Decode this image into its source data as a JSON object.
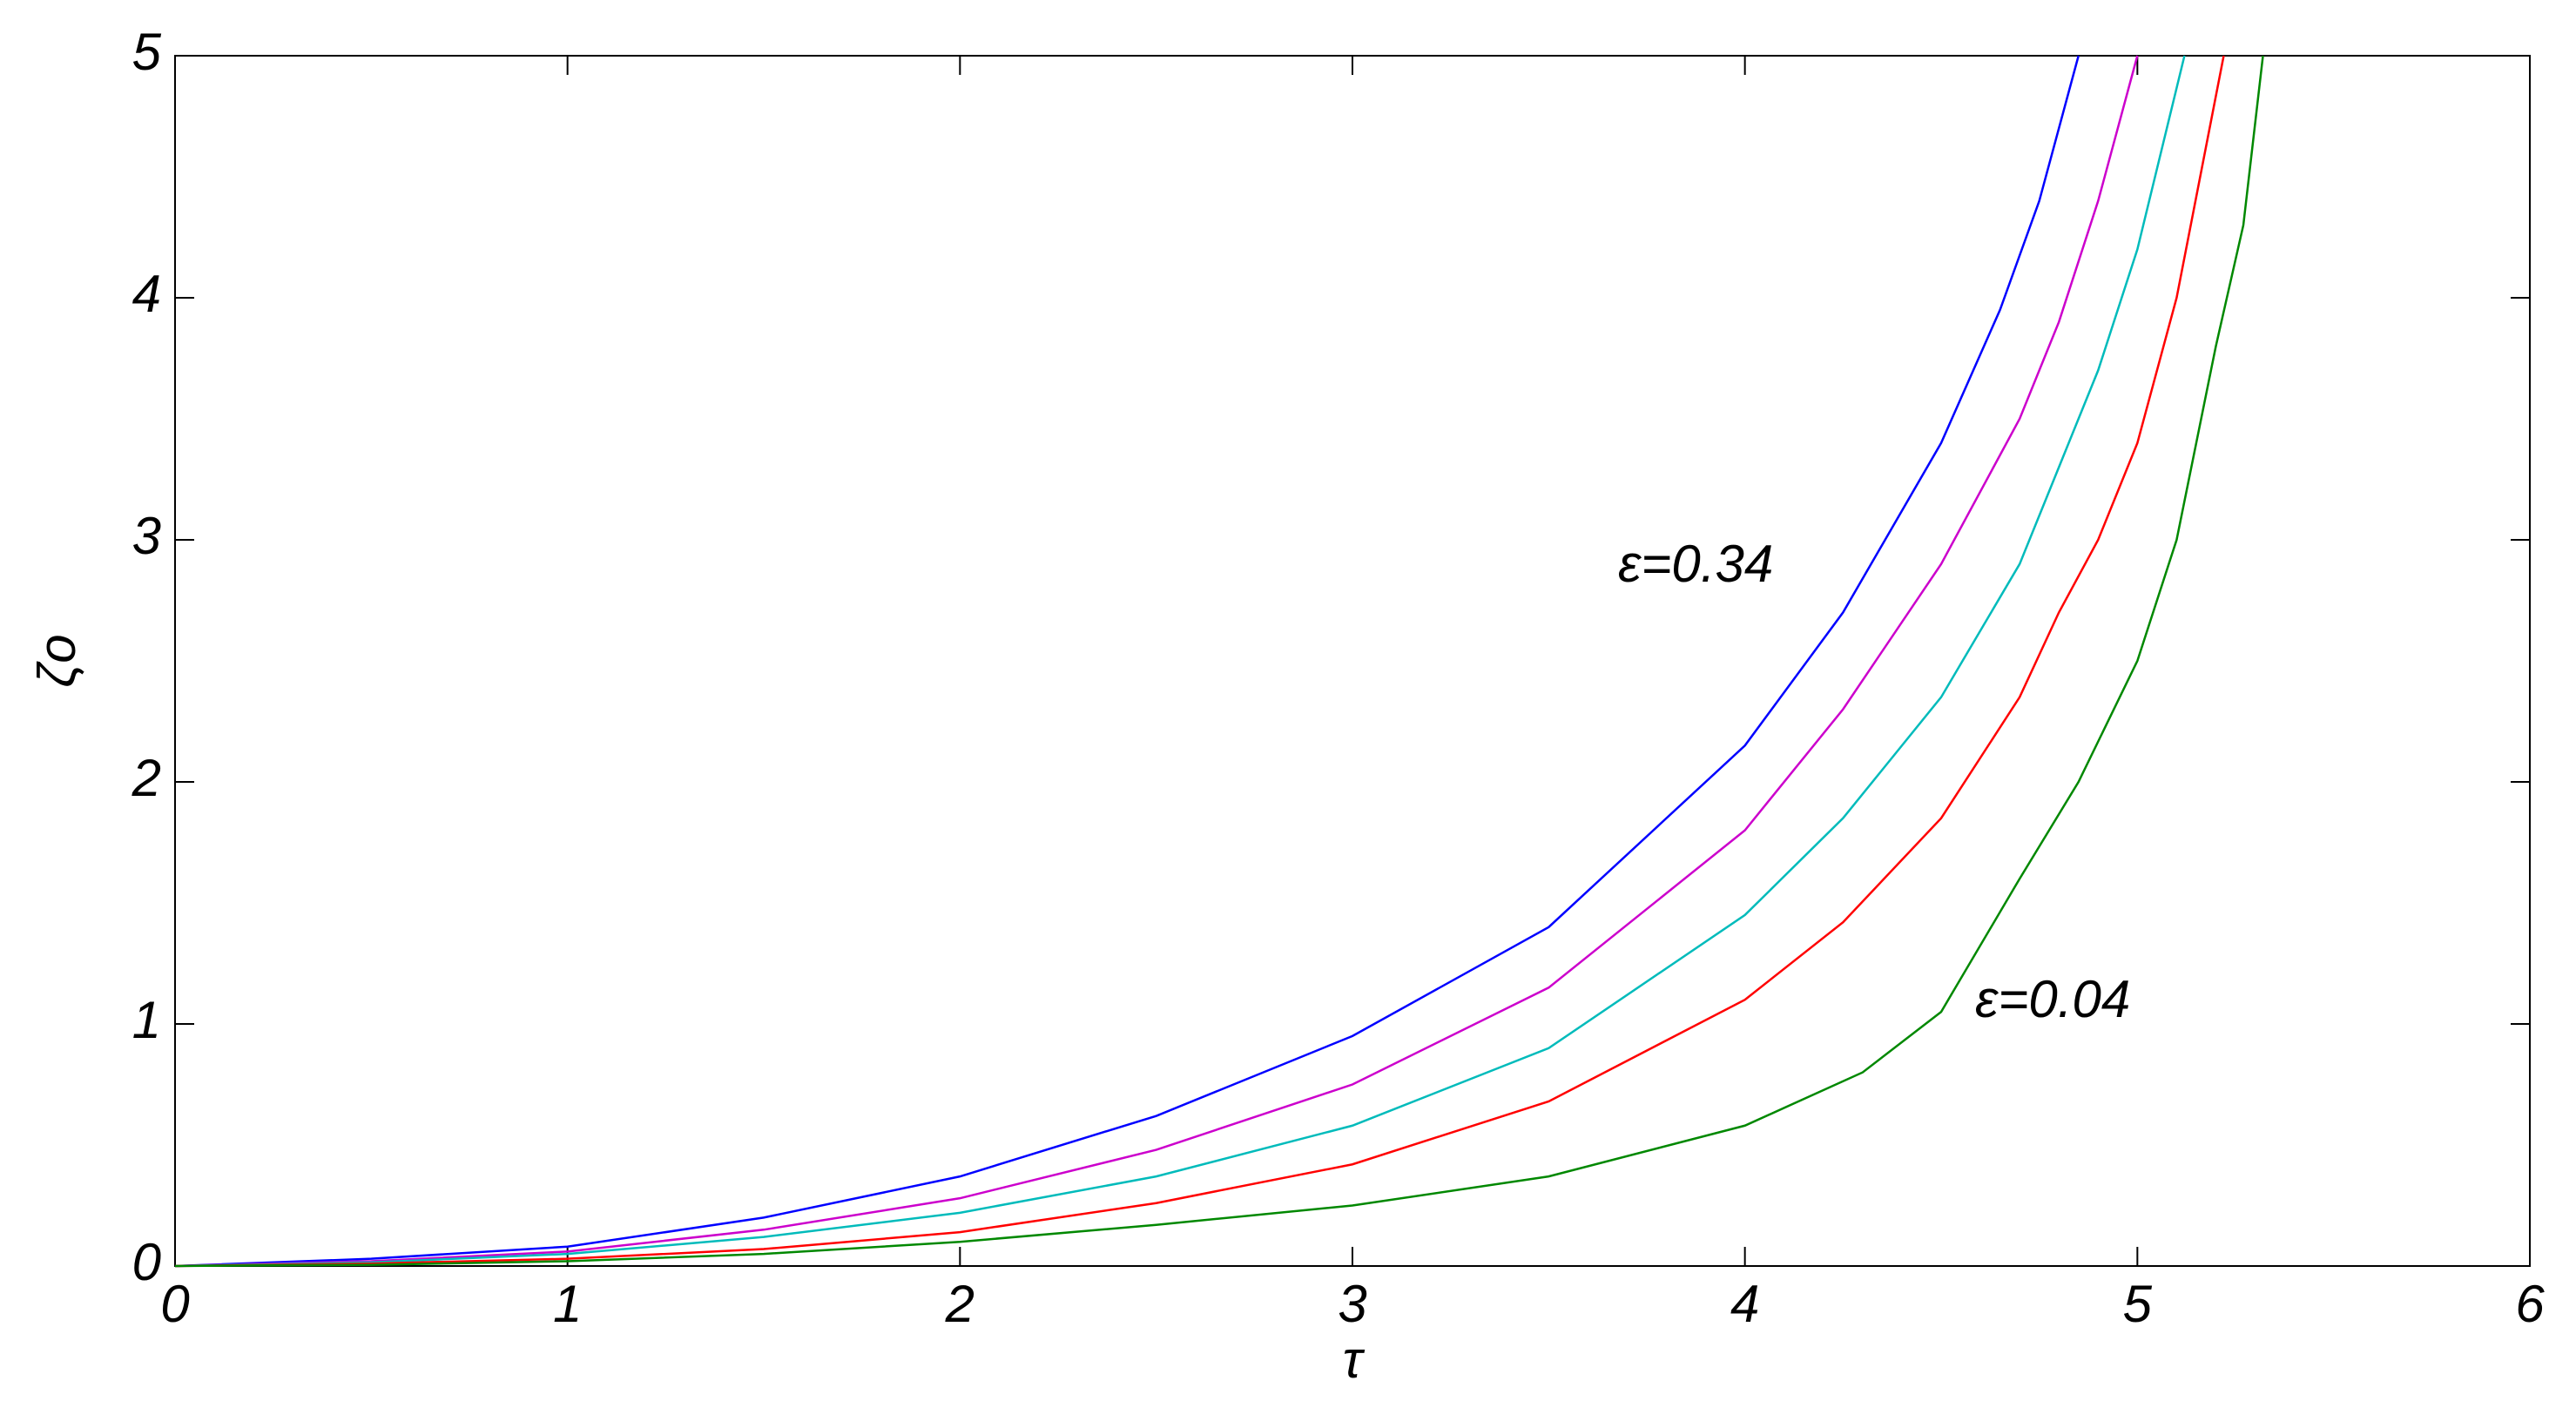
{
  "chart_data": {
    "type": "line",
    "xlabel": "τ",
    "ylabel": "ζo",
    "annotations": [
      "ε=0.34",
      "ε=0.04"
    ],
    "xlim": [
      0,
      6
    ],
    "ylim": [
      0,
      5
    ],
    "xticks": [
      0,
      1,
      2,
      3,
      4,
      5,
      6
    ],
    "yticks": [
      0,
      1,
      2,
      3,
      4,
      5
    ],
    "grid": false,
    "series": [
      {
        "color": "#0000ff",
        "x": [
          0,
          0.5,
          1,
          1.5,
          2,
          2.5,
          3,
          3.5,
          4,
          4.25,
          4.5,
          4.65,
          4.75,
          4.85
        ],
        "values": [
          0,
          0.03,
          0.08,
          0.2,
          0.37,
          0.62,
          0.95,
          1.4,
          2.15,
          2.7,
          3.4,
          3.95,
          4.4,
          5
        ]
      },
      {
        "color": "#cc00cc",
        "x": [
          0,
          0.5,
          1,
          1.5,
          2,
          2.5,
          3,
          3.5,
          4,
          4.25,
          4.5,
          4.7,
          4.8,
          4.9,
          5.0
        ],
        "values": [
          0,
          0.02,
          0.06,
          0.15,
          0.28,
          0.48,
          0.75,
          1.15,
          1.8,
          2.3,
          2.9,
          3.5,
          3.9,
          4.4,
          5
        ]
      },
      {
        "color": "#00bbbb",
        "x": [
          0,
          0.5,
          1,
          1.5,
          2,
          2.5,
          3,
          3.5,
          4,
          4.25,
          4.5,
          4.7,
          4.8,
          4.9,
          5.0,
          5.12
        ],
        "values": [
          0,
          0.015,
          0.05,
          0.12,
          0.22,
          0.37,
          0.58,
          0.9,
          1.45,
          1.85,
          2.35,
          2.9,
          3.3,
          3.7,
          4.2,
          5
        ]
      },
      {
        "color": "#ff0000",
        "x": [
          0,
          0.5,
          1,
          1.5,
          2,
          2.5,
          3,
          3.5,
          4,
          4.25,
          4.5,
          4.7,
          4.8,
          4.9,
          5.0,
          5.1,
          5.22
        ],
        "values": [
          0,
          0.01,
          0.03,
          0.07,
          0.14,
          0.26,
          0.42,
          0.68,
          1.1,
          1.42,
          1.85,
          2.35,
          2.7,
          3.0,
          3.4,
          4.0,
          5
        ]
      },
      {
        "color": "#008800",
        "x": [
          0,
          0.5,
          1,
          1.5,
          2,
          2.5,
          3,
          3.5,
          4,
          4.3,
          4.5,
          4.7,
          4.85,
          5.0,
          5.1,
          5.2,
          5.27,
          5.32
        ],
        "values": [
          0,
          0.005,
          0.02,
          0.05,
          0.1,
          0.17,
          0.25,
          0.37,
          0.58,
          0.8,
          1.05,
          1.6,
          2.0,
          2.5,
          3.0,
          3.8,
          4.3,
          5
        ]
      }
    ]
  }
}
